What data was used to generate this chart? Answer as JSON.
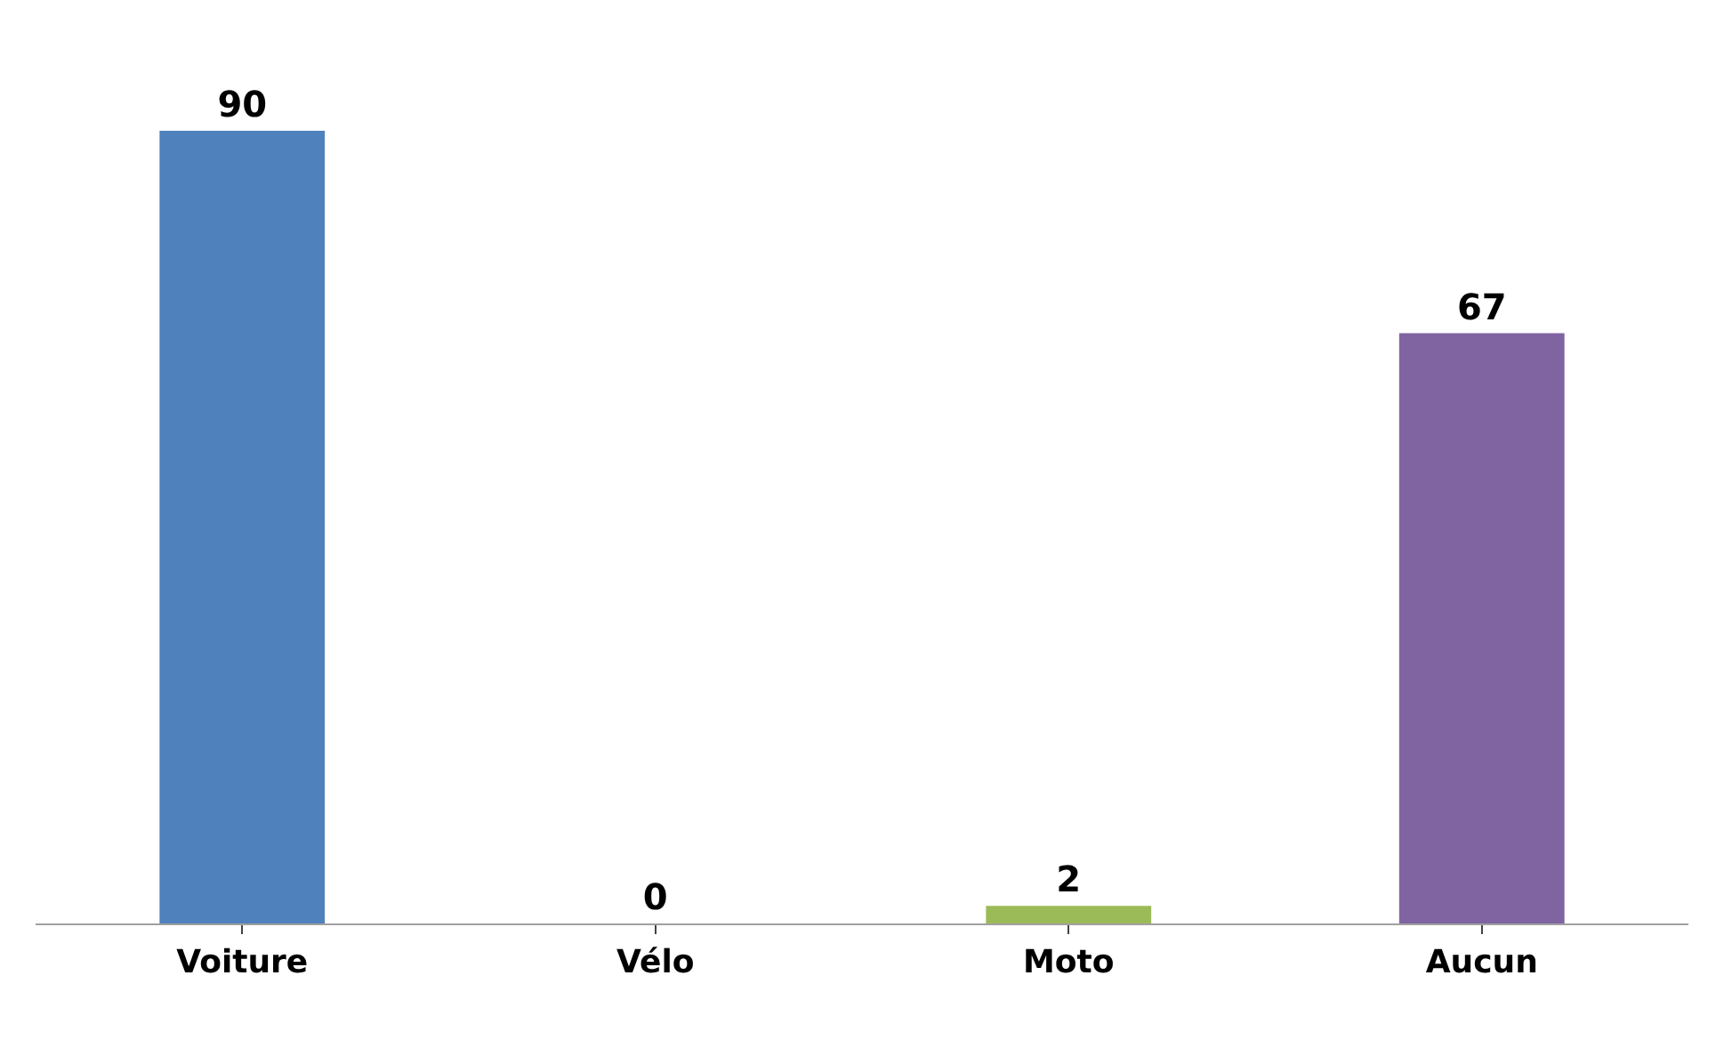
{
  "chart_data": {
    "type": "bar",
    "categories": [
      "Voiture",
      "Vélo",
      "Moto",
      "Aucun"
    ],
    "values": [
      90,
      0,
      2,
      67
    ],
    "colors": [
      "#4f81bd",
      "#c0504d",
      "#9bbb59",
      "#8064a2"
    ],
    "data_labels": true
  }
}
